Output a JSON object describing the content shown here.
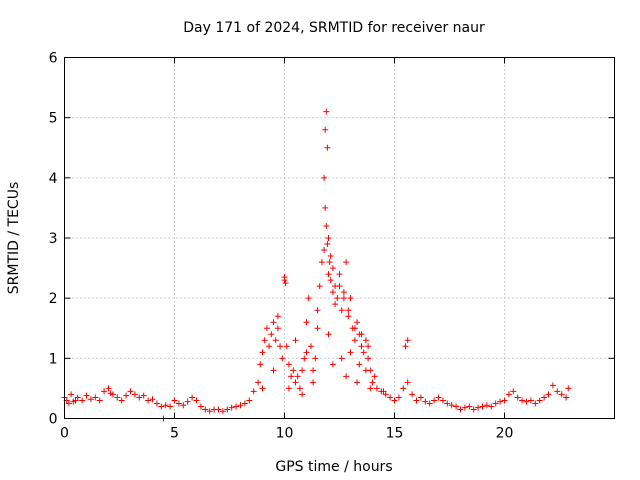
{
  "chart_data": {
    "type": "scatter",
    "title": "Day 171 of 2024, SRMTID for receiver naur",
    "xlabel": "GPS time / hours",
    "ylabel": "SRMTID / TECUs",
    "xlim": [
      0,
      25
    ],
    "ylim": [
      0,
      6
    ],
    "xticks": [
      0,
      5,
      10,
      15,
      20
    ],
    "yticks": [
      0,
      1,
      2,
      3,
      4,
      5,
      6
    ],
    "grid": true,
    "marker": "+",
    "color": "#ff0000",
    "series": [
      {
        "name": "SRMTID",
        "x": [
          0.0,
          0.1,
          0.2,
          0.3,
          0.4,
          0.5,
          0.6,
          0.8,
          1.0,
          1.2,
          1.4,
          1.6,
          1.8,
          2.0,
          2.1,
          2.2,
          2.4,
          2.6,
          2.8,
          3.0,
          3.2,
          3.4,
          3.6,
          3.8,
          4.0,
          4.2,
          4.4,
          4.5,
          4.6,
          4.8,
          5.0,
          5.2,
          5.4,
          5.6,
          5.8,
          6.0,
          6.2,
          6.4,
          6.6,
          6.8,
          7.0,
          7.2,
          7.4,
          7.6,
          7.8,
          8.0,
          8.2,
          8.4,
          8.6,
          8.8,
          8.9,
          9.0,
          9.1,
          9.2,
          9.3,
          9.4,
          9.5,
          9.6,
          9.7,
          9.8,
          9.9,
          10.0,
          10.1,
          10.2,
          10.3,
          10.4,
          10.5,
          10.6,
          10.7,
          10.8,
          10.9,
          11.0,
          11.1,
          11.2,
          11.3,
          11.4,
          11.5,
          11.6,
          11.7,
          11.8,
          11.85,
          11.9,
          11.95,
          12.0,
          12.1,
          12.2,
          12.3,
          12.4,
          12.5,
          12.6,
          12.7,
          12.8,
          12.9,
          13.0,
          13.1,
          13.2,
          13.3,
          13.4,
          13.5,
          13.6,
          13.7,
          13.8,
          13.9,
          14.0,
          14.2,
          14.4,
          14.6,
          14.8,
          15.0,
          15.2,
          15.4,
          15.5,
          15.6,
          15.8,
          16.0,
          16.2,
          16.4,
          16.6,
          16.8,
          17.0,
          17.2,
          17.4,
          17.6,
          17.8,
          18.0,
          18.2,
          18.4,
          18.6,
          18.8,
          19.0,
          19.2,
          19.4,
          19.6,
          19.8,
          20.0,
          20.2,
          20.4,
          20.6,
          20.8,
          21.0,
          21.2,
          21.4,
          21.6,
          21.8,
          22.0,
          22.2,
          22.4,
          22.6,
          22.8,
          22.9,
          11.8,
          11.85,
          11.9,
          11.95,
          12.0,
          12.05,
          12.1,
          12.2,
          12.3,
          12.5,
          12.7,
          12.9,
          13.2,
          13.5,
          13.8,
          10.0,
          10.05,
          9.7,
          10.5,
          11.0,
          11.5,
          12.0,
          12.6,
          13.0,
          13.4,
          13.7,
          14.1,
          15.6,
          9.0,
          9.5,
          10.2,
          10.8,
          11.3,
          12.2,
          12.8,
          13.3,
          13.9,
          14.5
        ],
        "y": [
          0.35,
          0.3,
          0.25,
          0.4,
          0.28,
          0.3,
          0.35,
          0.3,
          0.38,
          0.32,
          0.35,
          0.3,
          0.45,
          0.5,
          0.42,
          0.4,
          0.35,
          0.3,
          0.38,
          0.45,
          0.4,
          0.35,
          0.38,
          0.3,
          0.32,
          0.25,
          0.2,
          0.0,
          0.22,
          0.2,
          0.3,
          0.25,
          0.22,
          0.28,
          0.35,
          0.3,
          0.2,
          0.15,
          0.12,
          0.15,
          0.15,
          0.12,
          0.15,
          0.18,
          0.2,
          0.22,
          0.25,
          0.3,
          0.45,
          0.6,
          0.9,
          1.1,
          1.3,
          1.5,
          1.2,
          1.4,
          1.6,
          1.3,
          1.5,
          1.2,
          1.0,
          2.3,
          1.2,
          0.9,
          0.7,
          0.8,
          0.6,
          0.7,
          0.5,
          0.8,
          1.0,
          1.6,
          2.0,
          1.2,
          0.8,
          1.0,
          1.5,
          2.2,
          2.6,
          2.8,
          4.8,
          5.1,
          4.5,
          3.0,
          2.7,
          2.5,
          2.2,
          2.0,
          2.4,
          1.8,
          2.1,
          2.6,
          1.7,
          2.0,
          1.5,
          1.3,
          1.6,
          1.4,
          1.2,
          1.1,
          1.3,
          1.0,
          0.8,
          0.6,
          0.5,
          0.45,
          0.4,
          0.35,
          0.3,
          0.35,
          0.5,
          1.2,
          0.6,
          0.4,
          0.3,
          0.35,
          0.28,
          0.25,
          0.3,
          0.35,
          0.3,
          0.25,
          0.22,
          0.2,
          0.15,
          0.18,
          0.2,
          0.15,
          0.18,
          0.2,
          0.22,
          0.2,
          0.25,
          0.28,
          0.3,
          0.4,
          0.45,
          0.35,
          0.3,
          0.28,
          0.3,
          0.25,
          0.3,
          0.35,
          0.4,
          0.55,
          0.45,
          0.4,
          0.35,
          0.5,
          4.0,
          3.5,
          3.2,
          2.9,
          2.4,
          2.6,
          2.3,
          2.1,
          1.9,
          2.2,
          2.0,
          1.8,
          1.5,
          1.4,
          1.2,
          2.35,
          2.25,
          1.7,
          1.3,
          1.1,
          1.8,
          1.4,
          1.0,
          1.1,
          0.9,
          0.8,
          0.7,
          1.3,
          0.5,
          0.8,
          0.5,
          0.4,
          0.6,
          0.9,
          0.7,
          0.6,
          0.5,
          0.45
        ]
      }
    ]
  }
}
